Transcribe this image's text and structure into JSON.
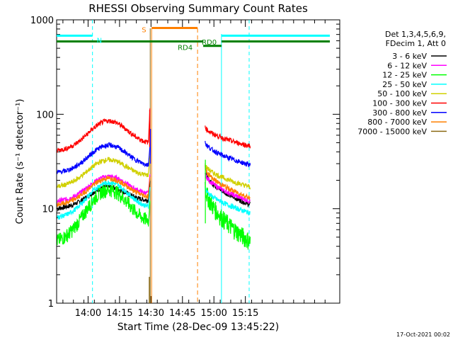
{
  "chart_data": {
    "type": "line",
    "title": "RHESSI Observing Summary Count Rates",
    "xlabel": "Start Time (28-Dec-09 13:45:22)",
    "ylabel": "Count Rate (s⁻¹ detector⁻¹)",
    "yscale": "log",
    "ylim": [
      1,
      1000
    ],
    "xlim_minutes": [
      13.75,
      16.0
    ],
    "x_ticks": [
      {
        "label": "14:00",
        "minutes": 14.0
      },
      {
        "label": "14:15",
        "minutes": 14.25
      },
      {
        "label": "14:30",
        "minutes": 14.5
      },
      {
        "label": "14:45",
        "minutes": 14.75
      },
      {
        "label": "15:00",
        "minutes": 15.0
      },
      {
        "label": "15:15",
        "minutes": 15.25
      }
    ],
    "y_ticks": [
      {
        "label": "1",
        "value": 1
      },
      {
        "label": "10",
        "value": 10
      },
      {
        "label": "100",
        "value": 100
      },
      {
        "label": "1000",
        "value": 1000
      }
    ],
    "legend": {
      "position": "top-right",
      "header": [
        "Det 1,3,4,5,6,9,",
        "FDecim 1, Att 0"
      ]
    },
    "series": [
      {
        "name": "3 - 6 keV",
        "color": "#000000",
        "seg1_edges": [
          10,
          10
        ],
        "seg1_peak": 17,
        "seg1_end": 12,
        "seg2_start": 25,
        "seg2_end": 11
      },
      {
        "name": "6 - 12 keV",
        "color": "#ff00ff",
        "seg1_edges": [
          12,
          13
        ],
        "seg1_peak": 22,
        "seg1_end": 14,
        "seg2_start": 24,
        "seg2_end": 12
      },
      {
        "name": "12 - 25 keV",
        "color": "#00ff00",
        "seg1_edges": [
          4.5,
          5
        ],
        "seg1_peak": 16,
        "seg1_end": 7,
        "seg2_start": 18,
        "seg2_end": 4.5
      },
      {
        "name": "25 - 50 keV",
        "color": "#00ffff",
        "seg1_edges": [
          8,
          8
        ],
        "seg1_peak": 19,
        "seg1_end": 10,
        "seg2_start": 17,
        "seg2_end": 9
      },
      {
        "name": "50 - 100 keV",
        "color": "#d0d000",
        "seg1_edges": [
          17,
          17
        ],
        "seg1_peak": 33,
        "seg1_end": 22,
        "seg2_start": 30,
        "seg2_end": 17
      },
      {
        "name": "100 - 300 keV",
        "color": "#ff0000",
        "seg1_edges": [
          41,
          42
        ],
        "seg1_peak": 85,
        "seg1_end": 48,
        "seg2_start": 75,
        "seg2_end": 46
      },
      {
        "name": "300 - 800 keV",
        "color": "#0000ff",
        "seg1_edges": [
          24,
          24
        ],
        "seg1_peak": 47,
        "seg1_end": 28,
        "seg2_start": 52,
        "seg2_end": 29
      },
      {
        "name": "800 - 7000 keV",
        "color": "#ff8000",
        "seg1_edges": [
          11,
          11
        ],
        "seg1_peak": 21,
        "seg1_end": 13,
        "seg2_start": 28,
        "seg2_end": 13
      },
      {
        "name": "7000 - 15000 keV",
        "color": "#8b6914",
        "seg1_edges": [
          0,
          0
        ],
        "seg1_peak": 0,
        "seg1_end": 0,
        "seg2_start": 0,
        "seg2_end": 0
      }
    ],
    "annotations": [
      {
        "label": "N",
        "color": "#00ffff",
        "type": "flag"
      },
      {
        "label": "S",
        "color": "#ff8000",
        "type": "flag"
      },
      {
        "label": "RD4",
        "color": "#008000",
        "type": "flag"
      },
      {
        "label": "RD0",
        "color": "#008000",
        "type": "flag"
      }
    ],
    "grid": false
  },
  "footer": {
    "timestamp": "17-Oct-2021 00:02"
  }
}
